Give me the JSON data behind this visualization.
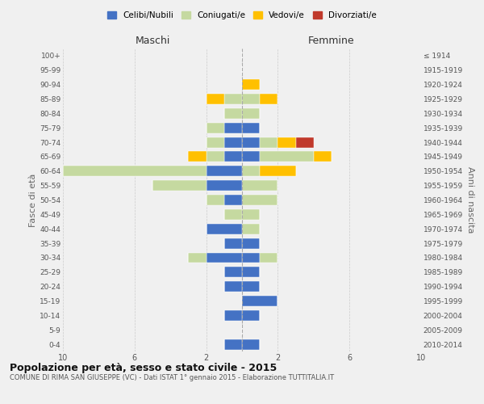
{
  "age_groups": [
    "0-4",
    "5-9",
    "10-14",
    "15-19",
    "20-24",
    "25-29",
    "30-34",
    "35-39",
    "40-44",
    "45-49",
    "50-54",
    "55-59",
    "60-64",
    "65-69",
    "70-74",
    "75-79",
    "80-84",
    "85-89",
    "90-94",
    "95-99",
    "100+"
  ],
  "birth_years": [
    "2010-2014",
    "2005-2009",
    "2000-2004",
    "1995-1999",
    "1990-1994",
    "1985-1989",
    "1980-1984",
    "1975-1979",
    "1970-1974",
    "1965-1969",
    "1960-1964",
    "1955-1959",
    "1950-1954",
    "1945-1949",
    "1940-1944",
    "1935-1939",
    "1930-1934",
    "1925-1929",
    "1920-1924",
    "1915-1919",
    "≤ 1914"
  ],
  "male": {
    "celibi": [
      1,
      0,
      1,
      0,
      1,
      1,
      2,
      1,
      2,
      0,
      1,
      2,
      2,
      1,
      1,
      1,
      0,
      0,
      0,
      0,
      0
    ],
    "coniugati": [
      0,
      0,
      0,
      0,
      0,
      0,
      1,
      0,
      0,
      1,
      1,
      3,
      8,
      1,
      1,
      1,
      1,
      1,
      0,
      0,
      0
    ],
    "vedovi": [
      0,
      0,
      0,
      0,
      0,
      0,
      0,
      0,
      0,
      0,
      0,
      0,
      0,
      1,
      0,
      0,
      0,
      1,
      0,
      0,
      0
    ],
    "divorziati": [
      0,
      0,
      0,
      0,
      0,
      0,
      0,
      0,
      0,
      0,
      0,
      0,
      0,
      0,
      0,
      0,
      0,
      0,
      0,
      0,
      0
    ]
  },
  "female": {
    "nubili": [
      1,
      0,
      1,
      2,
      1,
      1,
      1,
      1,
      0,
      0,
      0,
      0,
      0,
      1,
      1,
      1,
      0,
      0,
      0,
      0,
      0
    ],
    "coniugate": [
      0,
      0,
      0,
      0,
      0,
      0,
      1,
      0,
      1,
      1,
      2,
      2,
      1,
      3,
      1,
      0,
      1,
      1,
      0,
      0,
      0
    ],
    "vedove": [
      0,
      0,
      0,
      0,
      0,
      0,
      0,
      0,
      0,
      0,
      0,
      0,
      2,
      1,
      1,
      0,
      0,
      1,
      1,
      0,
      0
    ],
    "divorziate": [
      0,
      0,
      0,
      0,
      0,
      0,
      0,
      0,
      0,
      0,
      0,
      0,
      0,
      0,
      1,
      0,
      0,
      0,
      0,
      0,
      0
    ]
  },
  "colors": {
    "celibi": "#4472c4",
    "coniugati": "#c5d9a0",
    "vedovi": "#ffc000",
    "divorziati": "#c0392b"
  },
  "xlim": 10,
  "title": "Popolazione per età, sesso e stato civile - 2015",
  "subtitle": "COMUNE DI RIMA SAN GIUSEPPE (VC) - Dati ISTAT 1° gennaio 2015 - Elaborazione TUTTITALIA.IT",
  "ylabel_left": "Fasce di età",
  "ylabel_right": "Anni di nascita",
  "xlabel_left": "Maschi",
  "xlabel_right": "Femmine",
  "legend_labels": [
    "Celibi/Nubili",
    "Coniugati/e",
    "Vedovi/e",
    "Divorziati/e"
  ],
  "bg_color": "#f0f0f0",
  "grid_color": "#cccccc"
}
